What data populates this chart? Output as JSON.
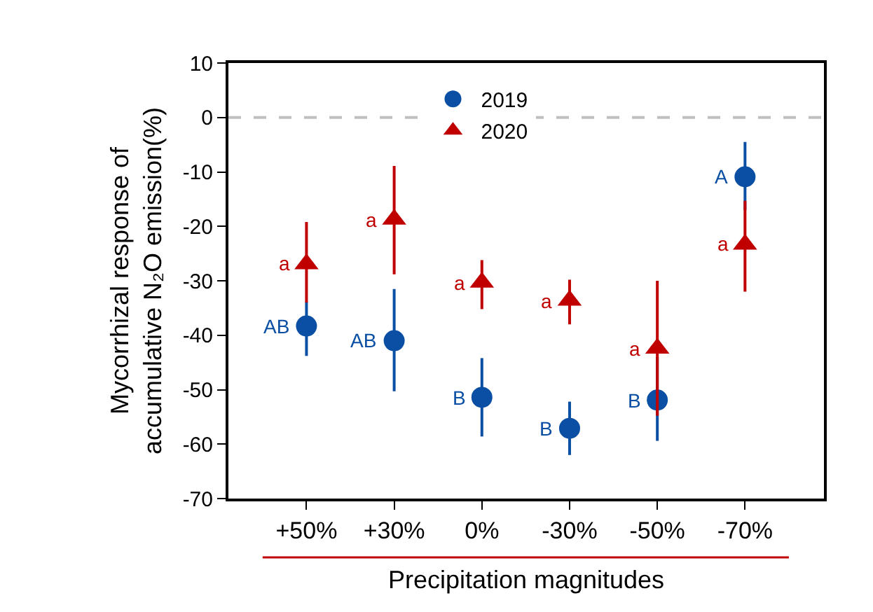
{
  "chart_data": {
    "type": "scatter",
    "xlabel": "Precipitation magnitudes",
    "ylabel": "Mycorrhizal response of\naccumulative N₂O emission(%)",
    "categories": [
      "+50%",
      "+30%",
      "0%",
      "-30%",
      "-50%",
      "-70%"
    ],
    "series": [
      {
        "name": "2019",
        "color": "#0a4fa3",
        "marker": "circle",
        "values": [
          -38.3,
          -41,
          -51.4,
          -57.1,
          -51.9,
          -10.9
        ],
        "errors": [
          [
            -43.8,
            -33.9
          ],
          [
            -50.3,
            -31.5
          ],
          [
            -58.6,
            -44.2
          ],
          [
            -62,
            -52.2
          ],
          [
            -59.4,
            -44
          ],
          [
            -17,
            -4.5
          ]
        ]
      },
      {
        "name": "2020",
        "color": "#c00000",
        "marker": "triangle",
        "values": [
          -26.9,
          -18.7,
          -30.3,
          -33.6,
          -42.4,
          -23.3
        ],
        "errors": [
          [
            -34,
            -19.2
          ],
          [
            -28.8,
            -8.9
          ],
          [
            -35.2,
            -26.2
          ],
          [
            -38,
            -29.8
          ],
          [
            -54.8,
            -30
          ],
          [
            -32,
            -15.3
          ]
        ]
      }
    ],
    "ylim": [
      -70,
      10
    ],
    "yticks": [
      -70,
      -60,
      -50,
      -40,
      -30,
      -20,
      -10,
      0,
      10
    ],
    "ref_lines": [
      {
        "axis": "y",
        "value": 0,
        "color": "#c0c0c0",
        "line_style": "dashed"
      }
    ],
    "annotations": [
      {
        "text": "AB",
        "x": "+50%",
        "y": -38.3
      },
      {
        "text": "AB",
        "x": "+30%",
        "y": -41
      },
      {
        "text": "B",
        "x": "0%",
        "y": -51.4
      },
      {
        "text": "B",
        "x": "-30%",
        "y": -57.1
      },
      {
        "text": "B",
        "x": "-50%",
        "y": -51.9
      },
      {
        "text": "A",
        "x": "-70%",
        "y": -10.9
      },
      {
        "text": "a",
        "x": "+50%",
        "y": -26.9
      },
      {
        "text": "a",
        "x": "+30%",
        "y": -18.7
      },
      {
        "text": "a",
        "x": "0%",
        "y": -30.3
      },
      {
        "text": "a",
        "x": "-30%",
        "y": -33.6
      },
      {
        "text": "a",
        "x": "-50%",
        "y": -42.4
      },
      {
        "text": "a",
        "x": "-70%",
        "y": -23.3
      }
    ],
    "legend": "top",
    "grid": false
  }
}
